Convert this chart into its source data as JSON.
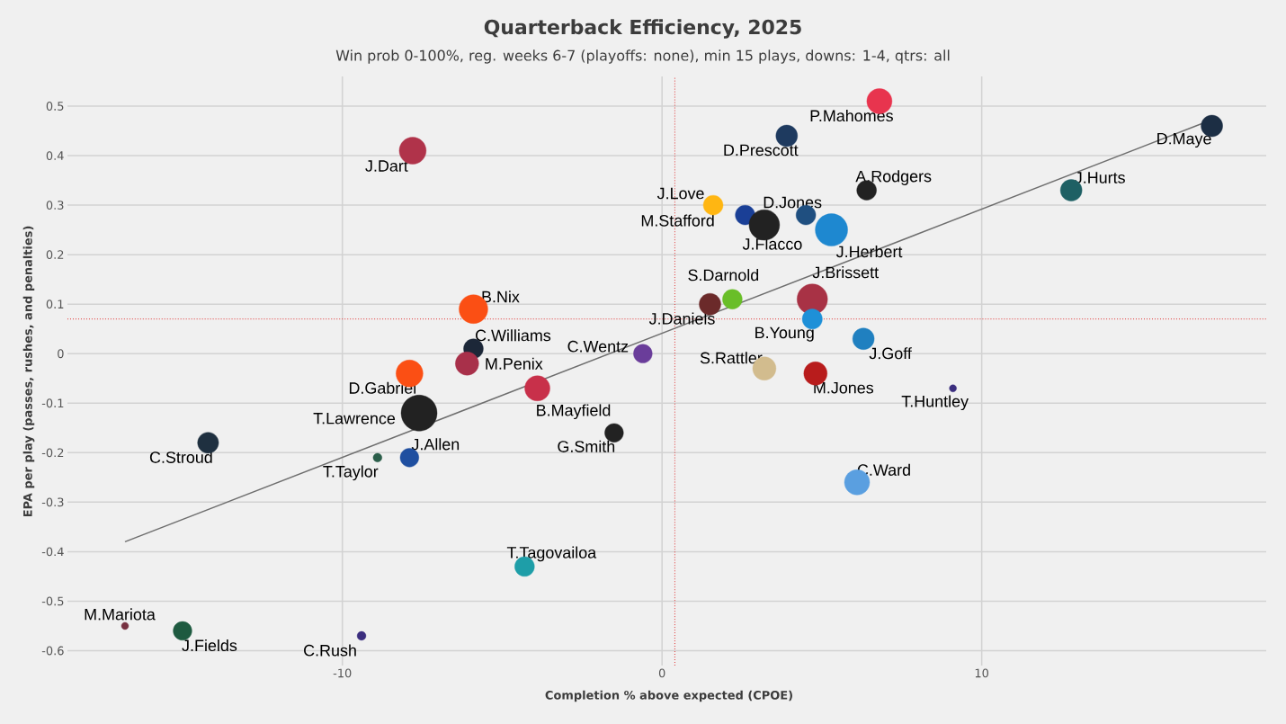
{
  "chart_data": {
    "type": "bubble",
    "title": "Quarterback Efficiency, 2025",
    "subtitle": "Win prob 0-100%, reg. weeks 6-7 (playoffs: none), min 15 plays, downs: 1-4, qtrs: all",
    "xlabel": "Completion % above expected (CPOE)",
    "ylabel": "EPA per play (passes, rushes, and penalties)",
    "xlim": [
      -18.6,
      18.9
    ],
    "ylim": [
      -0.63,
      0.56
    ],
    "xticks": [
      -10,
      0,
      10
    ],
    "yticks": [
      -0.6,
      -0.5,
      -0.4,
      -0.3,
      -0.2,
      -0.1,
      0,
      0.1,
      0.2,
      0.3,
      0.4,
      0.5
    ],
    "grid": true,
    "series": [
      {
        "x": [
          6.8,
          3.9,
          -7.8,
          17.2,
          6.4,
          12.8,
          1.6,
          2.6,
          4.5,
          3.2,
          5.3,
          2.2,
          4.7,
          1.5,
          4.7,
          -5.9,
          6.3,
          -5.9,
          -0.6,
          3.2,
          4.8,
          -7.9,
          -6.1,
          -3.9,
          9.1,
          -7.6,
          -1.5,
          -14.2,
          -7.9,
          -8.9,
          6.1,
          -4.3,
          -16.8,
          -15.0,
          -9.4
        ],
        "values": [
          0.51,
          0.44,
          0.41,
          0.46,
          0.33,
          0.33,
          0.3,
          0.28,
          0.28,
          0.26,
          0.25,
          0.11,
          0.11,
          0.1,
          0.07,
          0.09,
          0.03,
          0.01,
          0.0,
          -0.03,
          -0.04,
          -0.04,
          -0.02,
          -0.07,
          -0.07,
          -0.12,
          -0.16,
          -0.18,
          -0.21,
          -0.21,
          -0.26,
          -0.43,
          -0.55,
          -0.56,
          -0.57
        ],
        "sizes": [
          0.49,
          0.36,
          0.56,
          0.36,
          0.3,
          0.36,
          0.3,
          0.3,
          0.3,
          0.72,
          0.81,
          0.3,
          0.72,
          0.36,
          0.31,
          0.64,
          0.36,
          0.3,
          0.27,
          0.42,
          0.42,
          0.56,
          0.42,
          0.49,
          0.04,
          1,
          0.27,
          0.34,
          0.27,
          0.06,
          0.49,
          0.3,
          0.04,
          0.27,
          0.06
        ],
        "colors": [
          "#e8344e",
          "#1e3a5f",
          "#b0334a",
          "#1c2e44",
          "#222222",
          "#1e6064",
          "#ffb612",
          "#1a3f96",
          "#1f4f80",
          "#222222",
          "#1e88d0",
          "#69be28",
          "#a83245",
          "#6b2a2a",
          "#1e90d8",
          "#fb4f14",
          "#2080c0",
          "#1c2738",
          "#6a3d9a",
          "#d2bc8e",
          "#b81c1c",
          "#fb4f14",
          "#a8304a",
          "#c8304a",
          "#3b2e7e",
          "#222222",
          "#222222",
          "#1f3040",
          "#1f4fa0",
          "#2b5e4a",
          "#5a9fe0",
          "#1e9ea8",
          "#773141",
          "#1e5a40",
          "#3b2e7e"
        ]
      },
      {
        "type": "line",
        "x": [
          -16.8,
          17.1
        ],
        "values": [
          -0.38,
          0.47
        ],
        "color": "#6e6e6e"
      }
    ],
    "ref_lines": [
      {
        "axis": "x",
        "value": 0.4,
        "color": "#e03030",
        "line_style": "dotted"
      },
      {
        "axis": "y",
        "value": 0.07,
        "color": "#e03030",
        "line_style": "dotted"
      }
    ],
    "annotations": [
      {
        "text": "P.Mahomes",
        "x": 6.8,
        "y": 0.51
      },
      {
        "text": "D.Prescott",
        "x": 3.9,
        "y": 0.44
      },
      {
        "text": "J.Dart",
        "x": -7.8,
        "y": 0.41
      },
      {
        "text": "D.Maye",
        "x": 17.2,
        "y": 0.46
      },
      {
        "text": "A.Rodgers",
        "x": 6.4,
        "y": 0.33
      },
      {
        "text": "J.Hurts",
        "x": 12.8,
        "y": 0.33
      },
      {
        "text": "J.Love",
        "x": 1.6,
        "y": 0.3
      },
      {
        "text": "M.Stafford",
        "x": 2.6,
        "y": 0.28
      },
      {
        "text": "D.Jones",
        "x": 4.5,
        "y": 0.28
      },
      {
        "text": "J.Flacco",
        "x": 3.2,
        "y": 0.26
      },
      {
        "text": "J.Herbert",
        "x": 5.3,
        "y": 0.25
      },
      {
        "text": "S.Darnold",
        "x": 2.2,
        "y": 0.11
      },
      {
        "text": "J.Brissett",
        "x": 4.7,
        "y": 0.11
      },
      {
        "text": "J.Daniels",
        "x": 1.5,
        "y": 0.1
      },
      {
        "text": "B.Young",
        "x": 4.7,
        "y": 0.07
      },
      {
        "text": "B.Nix",
        "x": -5.9,
        "y": 0.09
      },
      {
        "text": "J.Goff",
        "x": 6.3,
        "y": 0.03
      },
      {
        "text": "C.Williams",
        "x": -5.9,
        "y": 0.01
      },
      {
        "text": "C.Wentz",
        "x": -0.6,
        "y": 0.0
      },
      {
        "text": "S.Rattler",
        "x": 3.2,
        "y": -0.03
      },
      {
        "text": "M.Jones",
        "x": 4.8,
        "y": -0.04
      },
      {
        "text": "D.Gabriel",
        "x": -7.9,
        "y": -0.04
      },
      {
        "text": "M.Penix",
        "x": -6.1,
        "y": -0.02
      },
      {
        "text": "B.Mayfield",
        "x": -3.9,
        "y": -0.07
      },
      {
        "text": "T.Huntley",
        "x": 9.1,
        "y": -0.07
      },
      {
        "text": "T.Lawrence",
        "x": -7.6,
        "y": -0.12
      },
      {
        "text": "G.Smith",
        "x": -1.5,
        "y": -0.16
      },
      {
        "text": "C.Stroud",
        "x": -14.2,
        "y": -0.18
      },
      {
        "text": "J.Allen",
        "x": -7.9,
        "y": -0.21
      },
      {
        "text": "T.Taylor",
        "x": -8.9,
        "y": -0.21
      },
      {
        "text": "C.Ward",
        "x": 6.1,
        "y": -0.26
      },
      {
        "text": "T.Tagovailoa",
        "x": -4.3,
        "y": -0.43
      },
      {
        "text": "M.Mariota",
        "x": -16.8,
        "y": -0.55
      },
      {
        "text": "J.Fields",
        "x": -15.0,
        "y": -0.56
      },
      {
        "text": "C.Rush",
        "x": -9.4,
        "y": -0.57
      }
    ]
  }
}
